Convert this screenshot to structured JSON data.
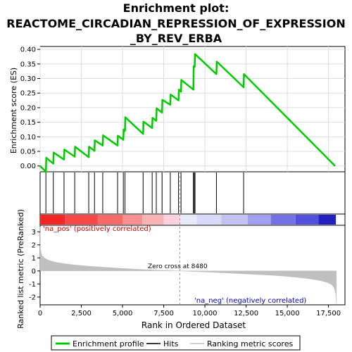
{
  "chart_data": [
    {
      "panel": "enrichment-profile",
      "type": "line",
      "title_lines": [
        "Enrichment plot:",
        "REACTOME_CIRCADIAN_REPRESSION_OF_EXPRESSION",
        "_BY_REV_ERBA"
      ],
      "ylabel": "Enrichment score (ES)",
      "ylim": [
        -0.02,
        0.41
      ],
      "yticks": [
        0.0,
        0.05,
        0.1,
        0.15,
        0.2,
        0.25,
        0.3,
        0.35,
        0.4
      ],
      "ytick_labels": [
        "0.00",
        "0.05",
        "0.10",
        "0.15",
        "0.20",
        "0.25",
        "0.30",
        "0.35",
        "0.40"
      ],
      "xlim": [
        0,
        18500
      ],
      "grid": true,
      "line_color": "#00cc00",
      "series": [
        {
          "x": [
            0,
            350,
            370,
            800,
            820,
            1450,
            1470,
            2100,
            2120,
            2950,
            2970,
            3300,
            3320,
            3800,
            3820,
            4700,
            4720,
            5050,
            5070,
            5150,
            5170,
            6250,
            6270,
            6800,
            6820,
            7050,
            7070,
            7400,
            7420,
            7900,
            7920,
            8400,
            8420,
            8550,
            8570,
            9300,
            9320,
            9380,
            9400,
            10700,
            10720,
            12350,
            12370,
            17900
          ],
          "y": [
            0.0,
            -0.02,
            0.028,
            0.008,
            0.046,
            0.022,
            0.056,
            0.032,
            0.066,
            0.03,
            0.066,
            0.052,
            0.088,
            0.07,
            0.105,
            0.07,
            0.104,
            0.09,
            0.125,
            0.12,
            0.167,
            0.11,
            0.152,
            0.13,
            0.165,
            0.155,
            0.198,
            0.183,
            0.227,
            0.21,
            0.245,
            0.225,
            0.262,
            0.255,
            0.295,
            0.262,
            0.342,
            0.34,
            0.384,
            0.315,
            0.358,
            0.27,
            0.315,
            0.0
          ]
        }
      ]
    },
    {
      "panel": "hits",
      "type": "scatter",
      "xlim": [
        0,
        18500
      ],
      "hit_positions": [
        350,
        800,
        1450,
        2100,
        2950,
        3300,
        3800,
        4700,
        5050,
        5150,
        6250,
        6800,
        7050,
        7400,
        7900,
        8400,
        8550,
        9300,
        9350,
        9400,
        10700,
        12350
      ]
    },
    {
      "panel": "ranking-color-bar",
      "type": "heatmap",
      "xlim": [
        0,
        18500
      ],
      "segments": [
        {
          "x0": 0,
          "x1": 1500,
          "color": "#f52626"
        },
        {
          "x0": 1500,
          "x1": 3500,
          "color": "#f94848"
        },
        {
          "x0": 3500,
          "x1": 5000,
          "color": "#f96a6a"
        },
        {
          "x0": 5000,
          "x1": 6200,
          "color": "#fa9090"
        },
        {
          "x0": 6200,
          "x1": 7500,
          "color": "#fbb4b4"
        },
        {
          "x0": 7500,
          "x1": 8500,
          "color": "#fdd0e0"
        },
        {
          "x0": 8500,
          "x1": 9500,
          "color": "#e8e8f8"
        },
        {
          "x0": 9500,
          "x1": 11000,
          "color": "#d8d8f8"
        },
        {
          "x0": 11000,
          "x1": 12600,
          "color": "#c2c2f2"
        },
        {
          "x0": 12600,
          "x1": 14000,
          "color": "#a0a0ee"
        },
        {
          "x0": 14000,
          "x1": 15500,
          "color": "#7272e6"
        },
        {
          "x0": 15500,
          "x1": 16900,
          "color": "#5050dc"
        },
        {
          "x0": 16900,
          "x1": 17950,
          "color": "#2020c0"
        }
      ]
    },
    {
      "panel": "ranked-list-metric",
      "type": "area",
      "ylabel": "Ranked list metric (PreRanked)",
      "xlabel": "Rank in Ordered Dataset",
      "ylim": [
        -2.6,
        3.5
      ],
      "yticks": [
        -2,
        -1,
        0,
        1,
        2,
        3
      ],
      "xlim": [
        0,
        18500
      ],
      "xticks": [
        0,
        2500,
        5000,
        7500,
        10000,
        12500,
        15000,
        17500
      ],
      "xtick_labels": [
        "0",
        "2,500",
        "5,000",
        "7,500",
        "10,000",
        "12,500",
        "15,000",
        "17,500"
      ],
      "fill_color": "#c0c0c0",
      "x": [
        0,
        20,
        100,
        300,
        600,
        1000,
        1500,
        2000,
        3000,
        4000,
        5000,
        6000,
        7000,
        8000,
        8480,
        9000,
        10000,
        11000,
        12000,
        13000,
        14000,
        15000,
        16000,
        16500,
        17000,
        17400,
        17700,
        17850,
        17950,
        17980
      ],
      "values": [
        3.4,
        1.65,
        1.2,
        0.95,
        0.78,
        0.65,
        0.55,
        0.47,
        0.36,
        0.27,
        0.19,
        0.12,
        0.06,
        0.02,
        0.0,
        -0.03,
        -0.08,
        -0.14,
        -0.2,
        -0.26,
        -0.33,
        -0.42,
        -0.55,
        -0.63,
        -0.74,
        -0.88,
        -1.05,
        -1.3,
        -1.8,
        -2.5
      ],
      "zero_cross": 8480,
      "annotations": {
        "positive": "'na_pos' (positively correlated)",
        "negative": "'na_neg' (negatively correlated)",
        "zero_cross": "Zero cross at 8480"
      }
    }
  ],
  "legend": {
    "items": [
      {
        "label": "Enrichment profile",
        "color": "#00cc00"
      },
      {
        "label": "Hits",
        "color": "#000000"
      },
      {
        "label": "Ranking metric scores",
        "color": "#c0c0c0"
      }
    ]
  },
  "colors": {
    "positive_label": "#cc0000",
    "negative_label": "#0000cc",
    "grid": "#dddddd",
    "zero_cross_line": "#999999"
  }
}
